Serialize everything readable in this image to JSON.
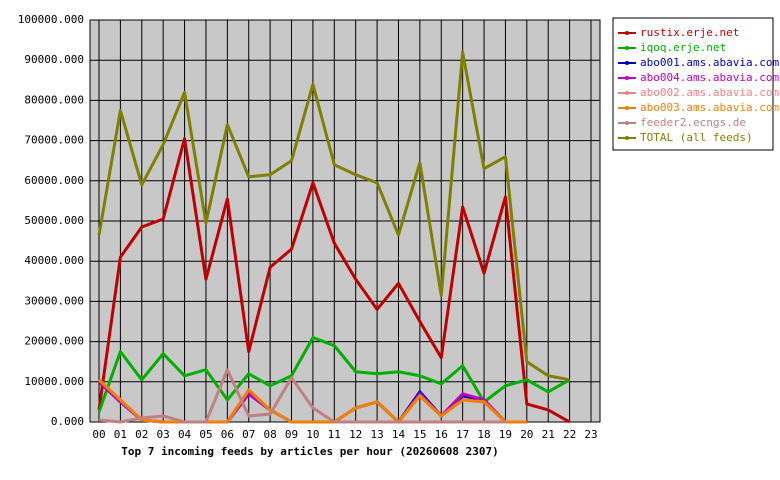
{
  "chart_data": {
    "type": "line",
    "title": "Top 7 incoming feeds by articles per hour (20260608 2307)",
    "categories": [
      "00",
      "01",
      "02",
      "03",
      "04",
      "05",
      "06",
      "07",
      "08",
      "09",
      "10",
      "11",
      "12",
      "13",
      "14",
      "15",
      "16",
      "17",
      "18",
      "19",
      "20",
      "21",
      "22",
      "23"
    ],
    "ylim": [
      0,
      100000
    ],
    "yticks": [
      {
        "value": 0,
        "label": "0.000"
      },
      {
        "value": 10000,
        "label": "10000.000"
      },
      {
        "value": 20000,
        "label": "20000.000"
      },
      {
        "value": 30000,
        "label": "30000.000"
      },
      {
        "value": 40000,
        "label": "40000.000"
      },
      {
        "value": 50000,
        "label": "50000.000"
      },
      {
        "value": 60000,
        "label": "60000.000"
      },
      {
        "value": 70000,
        "label": "70000.000"
      },
      {
        "value": 80000,
        "label": "80000.000"
      },
      {
        "value": 90000,
        "label": "90000.000"
      },
      {
        "value": 100000,
        "label": "100000.000"
      }
    ],
    "grid": true,
    "legend": "right",
    "series": [
      {
        "name": "rustix.erje.net",
        "color": "#c00000",
        "values": [
          3000,
          41000,
          48500,
          50500,
          70500,
          35500,
          55500,
          17500,
          38500,
          43000,
          59500,
          44500,
          35500,
          28000,
          34500,
          25000,
          16000,
          53500,
          37000,
          56000,
          4500,
          3000,
          0,
          null
        ]
      },
      {
        "name": "iqoq.erje.net",
        "color": "#00b000",
        "values": [
          2500,
          17500,
          10500,
          17000,
          11500,
          13000,
          5500,
          12000,
          9000,
          11500,
          21000,
          19000,
          12500,
          12000,
          12500,
          11500,
          9500,
          14000,
          5000,
          9000,
          10500,
          7500,
          10500,
          null
        ]
      },
      {
        "name": "abo001.ams.abavia.com",
        "color": "#0000c0",
        "values": [
          10000,
          5000,
          500,
          0,
          0,
          0,
          0,
          7000,
          3000,
          0,
          0,
          0,
          3500,
          5000,
          0,
          7500,
          1500,
          6500,
          5500,
          0,
          0,
          null,
          null,
          null
        ]
      },
      {
        "name": "abo004.ams.abavia.com",
        "color": "#c000c0",
        "values": [
          10000,
          5000,
          500,
          0,
          0,
          0,
          0,
          7000,
          3000,
          0,
          0,
          0,
          3500,
          5000,
          0,
          7000,
          1500,
          7000,
          5500,
          0,
          0,
          null,
          null,
          null
        ]
      },
      {
        "name": "abo002.ams.abavia.com",
        "color": "#f08080",
        "values": [
          10500,
          5500,
          500,
          0,
          0,
          0,
          0,
          8000,
          3000,
          0,
          0,
          0,
          3500,
          5000,
          0,
          6500,
          1500,
          5500,
          5000,
          0,
          0,
          null,
          null,
          null
        ]
      },
      {
        "name": "abo003.ams.abavia.com",
        "color": "#f08000",
        "values": [
          10500,
          5500,
          500,
          0,
          0,
          0,
          0,
          8000,
          3000,
          0,
          0,
          0,
          3500,
          5000,
          0,
          6500,
          1500,
          5500,
          5000,
          0,
          0,
          null,
          null,
          null
        ]
      },
      {
        "name": "feeder2.ecngs.de",
        "color": "#c08080",
        "values": [
          500,
          0,
          1000,
          1500,
          0,
          0,
          13000,
          1500,
          2000,
          11000,
          3500,
          0,
          0,
          0,
          0,
          0,
          0,
          0,
          0,
          0,
          null,
          null,
          null,
          null
        ]
      },
      {
        "name": "TOTAL (all feeds)",
        "color": "#808000",
        "values": [
          46500,
          77500,
          59000,
          69000,
          82000,
          49500,
          74000,
          61000,
          61500,
          65000,
          84000,
          64000,
          61500,
          59500,
          46500,
          64500,
          31500,
          92000,
          63000,
          66000,
          15000,
          11500,
          10500,
          null
        ]
      }
    ]
  }
}
